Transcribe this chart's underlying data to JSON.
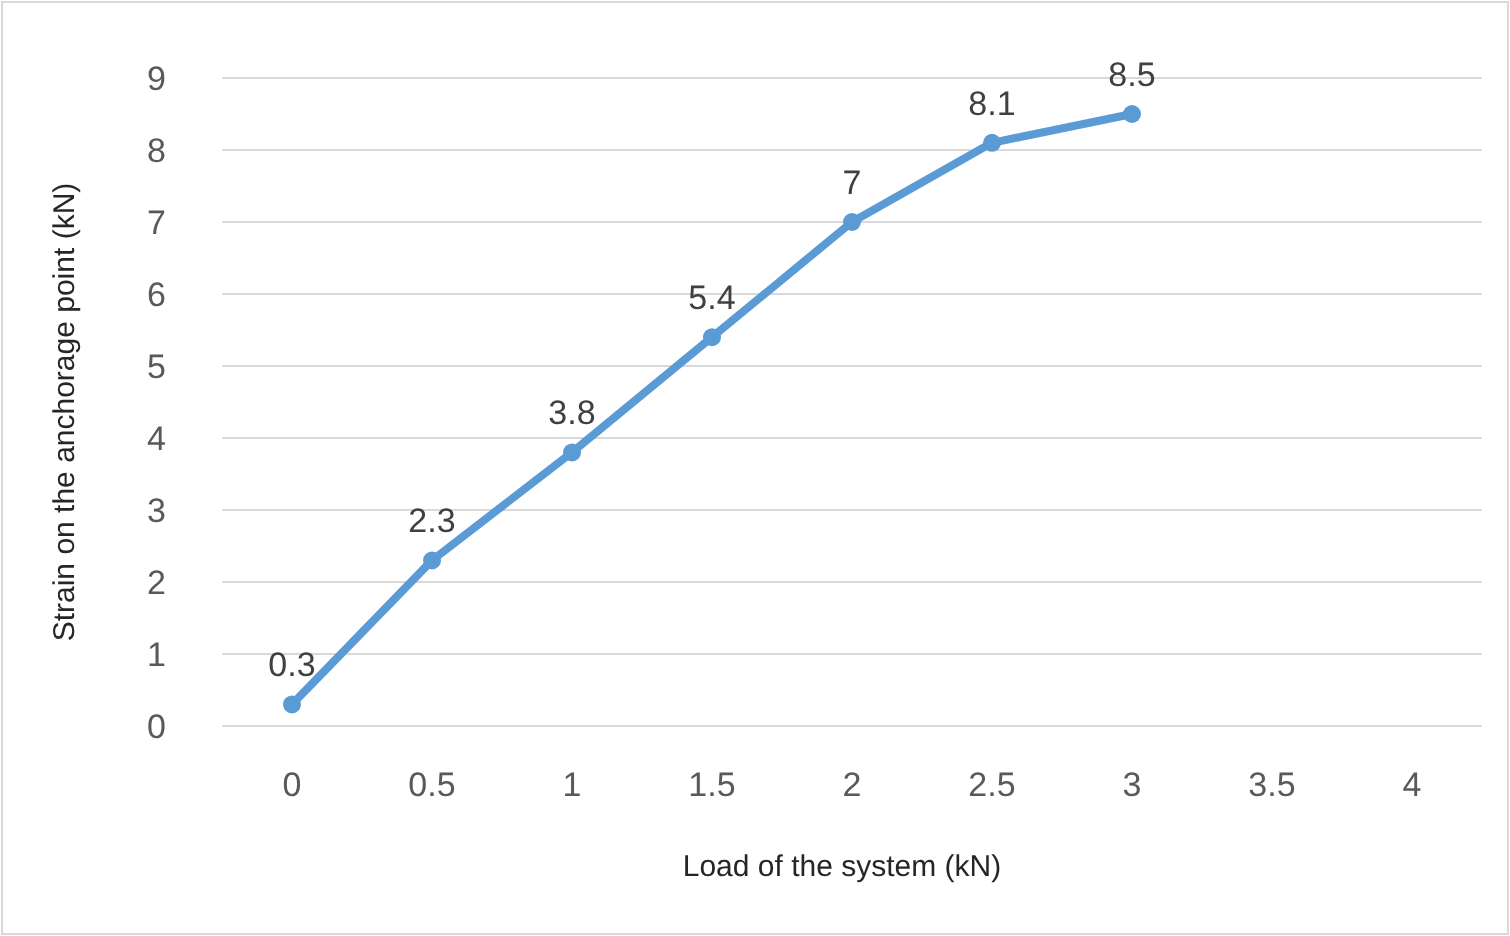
{
  "chart_data": {
    "type": "line",
    "xlabel": "Load of the system (kN)",
    "ylabel": "Strain on the anchorage point (kN)",
    "categories": [
      "0",
      "0.5",
      "1",
      "1.5",
      "2",
      "2.5",
      "3",
      "3.5",
      "4"
    ],
    "series": [
      {
        "color": "#5b9bd5",
        "values": [
          0.3,
          2.3,
          3.8,
          5.4,
          7,
          8.1,
          8.5,
          null,
          null
        ]
      }
    ],
    "ylim": [
      0,
      9
    ],
    "yticks": [
      0,
      1,
      2,
      3,
      4,
      5,
      6,
      7,
      8,
      9
    ],
    "grid": "y",
    "marker": "circle",
    "line_style": "solid",
    "data_labels": true
  }
}
